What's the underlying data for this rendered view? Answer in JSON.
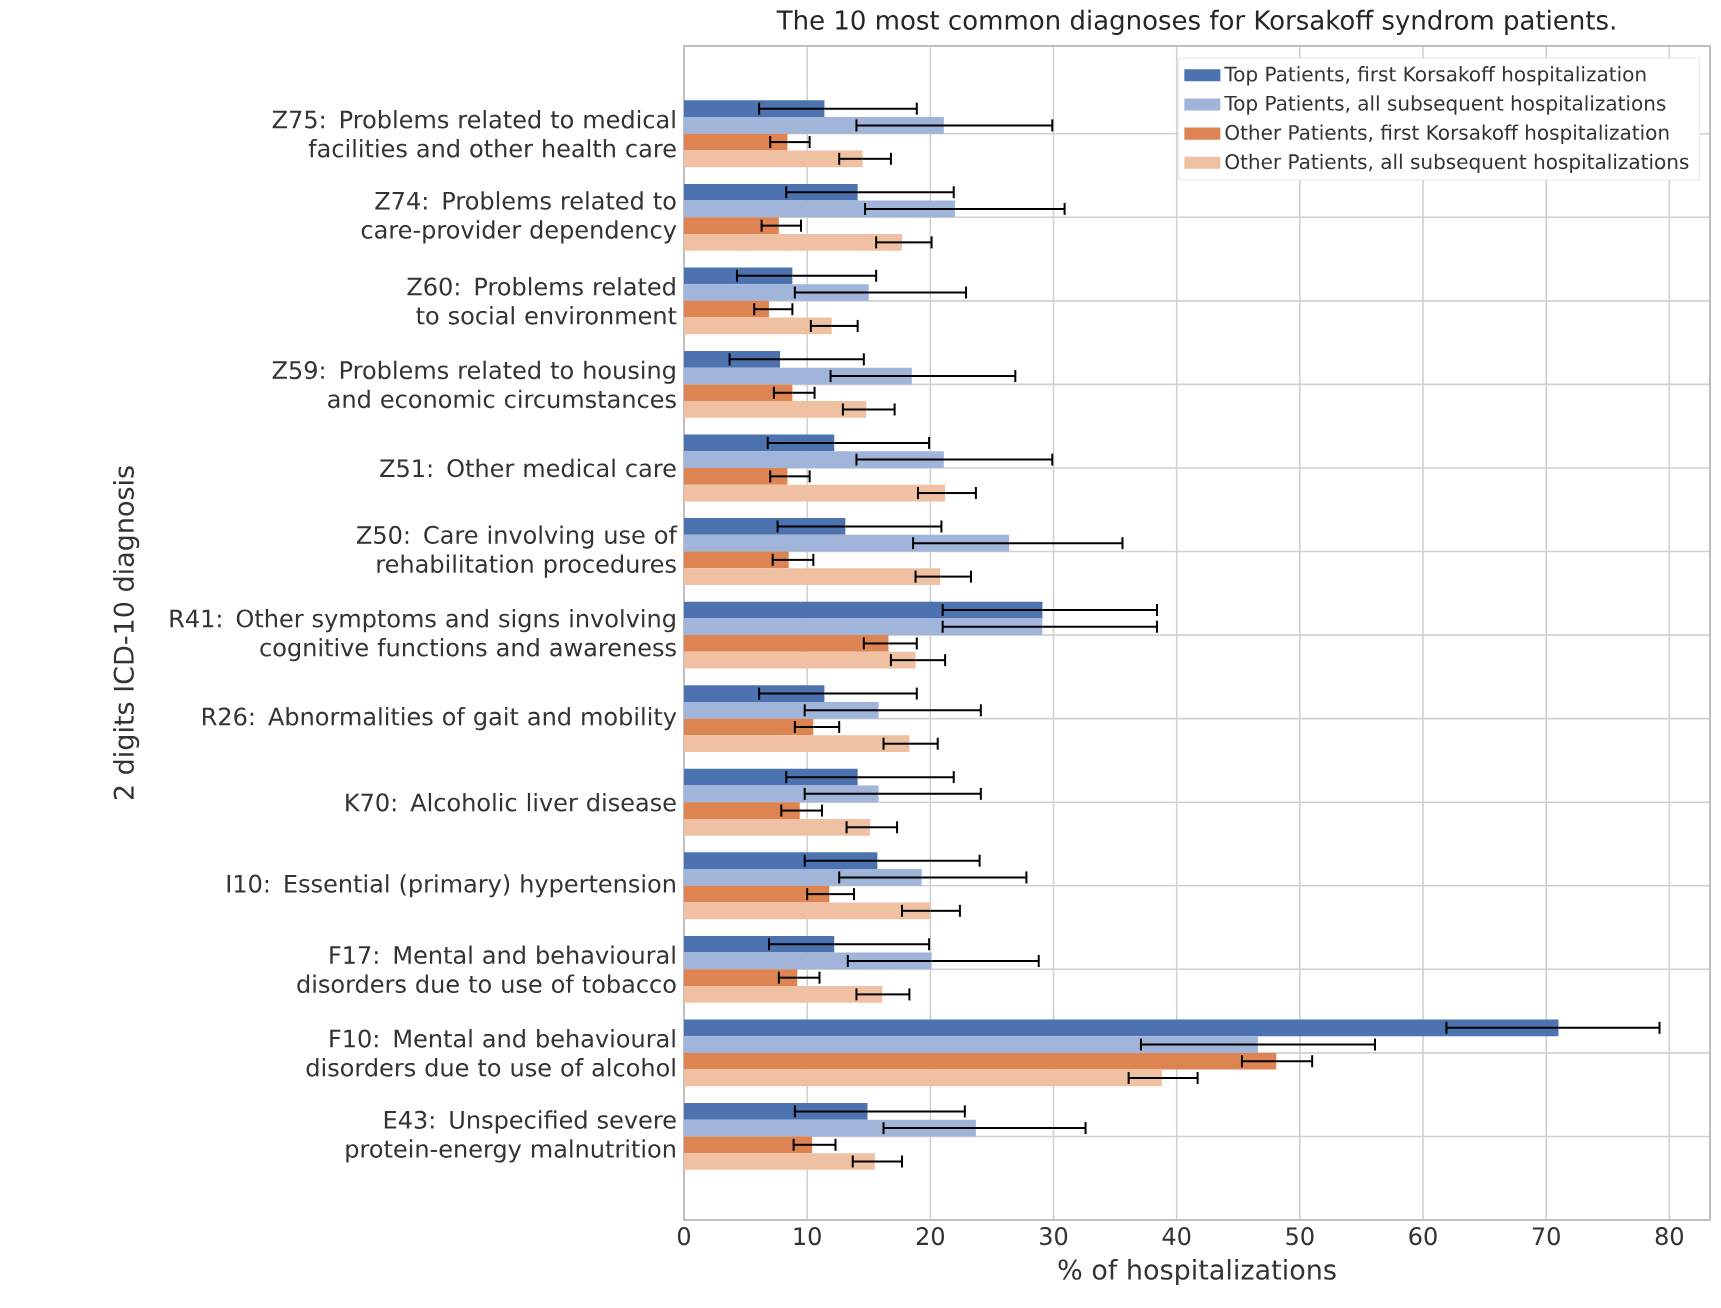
{
  "chart_data": {
    "type": "bar",
    "orientation": "horizontal",
    "title": "The 10 most common diagnoses for Korsakoff syndrom patients.",
    "xlabel": "% of hospitalizations",
    "ylabel": "2 digits ICD-10 diagnosis",
    "categories": [
      "Z75: Problems related to medical facilities and other health care",
      "Z74: Problems related to care-provider dependency",
      "Z60: Problems related to social environment",
      "Z59: Problems related to housing and economic circumstances",
      "Z51: Other medical care",
      "Z50: Care involving use of rehabilitation procedures",
      "R41: Other symptoms and signs involving cognitive functions and awareness",
      "R26: Abnormalities of gait and mobility",
      "K70: Alcoholic liver disease",
      "I10: Essential (primary) hypertension",
      "F17: Mental and behavioural disorders due to use of tobacco",
      "F10: Mental and behavioural disorders due to use of alcohol",
      "E43: Unspecified severe protein-energy malnutrition"
    ],
    "series": [
      {
        "name": "Top Patients, first Korsakoff hospitalization",
        "color": "#4c72b0",
        "values": [
          11.4,
          14.1,
          8.8,
          7.8,
          12.2,
          13.1,
          29.1,
          11.4,
          14.1,
          15.7,
          12.2,
          71.0,
          14.9
        ],
        "errors": [
          [
            6.1,
            18.9
          ],
          [
            8.3,
            21.9
          ],
          [
            4.3,
            15.6
          ],
          [
            3.7,
            14.6
          ],
          [
            6.8,
            19.9
          ],
          [
            7.6,
            20.9
          ],
          [
            21.0,
            38.4
          ],
          [
            6.1,
            18.9
          ],
          [
            8.3,
            21.9
          ],
          [
            9.8,
            24.0
          ],
          [
            6.9,
            19.9
          ],
          [
            61.9,
            79.2
          ],
          [
            9.0,
            22.8
          ]
        ]
      },
      {
        "name": "Top Patients, all subsequent hospitalizations",
        "color": "#a1b4da",
        "values": [
          21.1,
          22.0,
          15.0,
          18.5,
          21.1,
          26.4,
          29.1,
          15.8,
          15.8,
          19.3,
          20.1,
          46.6,
          23.7
        ],
        "errors": [
          [
            14.0,
            29.9
          ],
          [
            14.7,
            30.9
          ],
          [
            9.0,
            22.9
          ],
          [
            11.9,
            26.9
          ],
          [
            14.0,
            29.9
          ],
          [
            18.6,
            35.6
          ],
          [
            21.0,
            38.4
          ],
          [
            9.8,
            24.1
          ],
          [
            9.8,
            24.1
          ],
          [
            12.6,
            27.8
          ],
          [
            13.3,
            28.8
          ],
          [
            37.1,
            56.1
          ],
          [
            16.2,
            32.6
          ]
        ]
      },
      {
        "name": "Other Patients, first Korsakoff hospitalization",
        "color": "#dd8452",
        "values": [
          8.4,
          7.7,
          6.9,
          8.8,
          8.4,
          8.5,
          16.6,
          10.5,
          9.4,
          11.8,
          9.2,
          48.1,
          10.4
        ],
        "errors": [
          [
            7.0,
            10.2
          ],
          [
            6.3,
            9.5
          ],
          [
            5.7,
            8.8
          ],
          [
            7.3,
            10.6
          ],
          [
            7.0,
            10.2
          ],
          [
            7.2,
            10.5
          ],
          [
            14.6,
            18.9
          ],
          [
            9.0,
            12.6
          ],
          [
            7.9,
            11.2
          ],
          [
            10.0,
            13.8
          ],
          [
            7.7,
            11.0
          ],
          [
            45.3,
            51.0
          ],
          [
            8.9,
            12.3
          ]
        ]
      },
      {
        "name": "Other Patients, all subsequent hospitalizations",
        "color": "#f0c0a2",
        "values": [
          14.5,
          17.7,
          12.0,
          14.8,
          21.2,
          20.8,
          18.8,
          18.3,
          15.1,
          20.0,
          16.1,
          38.8,
          15.5
        ],
        "errors": [
          [
            12.6,
            16.8
          ],
          [
            15.6,
            20.1
          ],
          [
            10.3,
            14.1
          ],
          [
            12.9,
            17.1
          ],
          [
            19.0,
            23.7
          ],
          [
            18.8,
            23.3
          ],
          [
            16.8,
            21.2
          ],
          [
            16.2,
            20.6
          ],
          [
            13.2,
            17.3
          ],
          [
            17.7,
            22.4
          ],
          [
            14.0,
            18.3
          ],
          [
            36.1,
            41.7
          ],
          [
            13.7,
            17.7
          ]
        ]
      }
    ],
    "xlim": [
      0,
      83.3
    ],
    "xticks": [
      0,
      10,
      20,
      30,
      40,
      50,
      60,
      70,
      80
    ],
    "grid": true,
    "legend": "top right"
  }
}
